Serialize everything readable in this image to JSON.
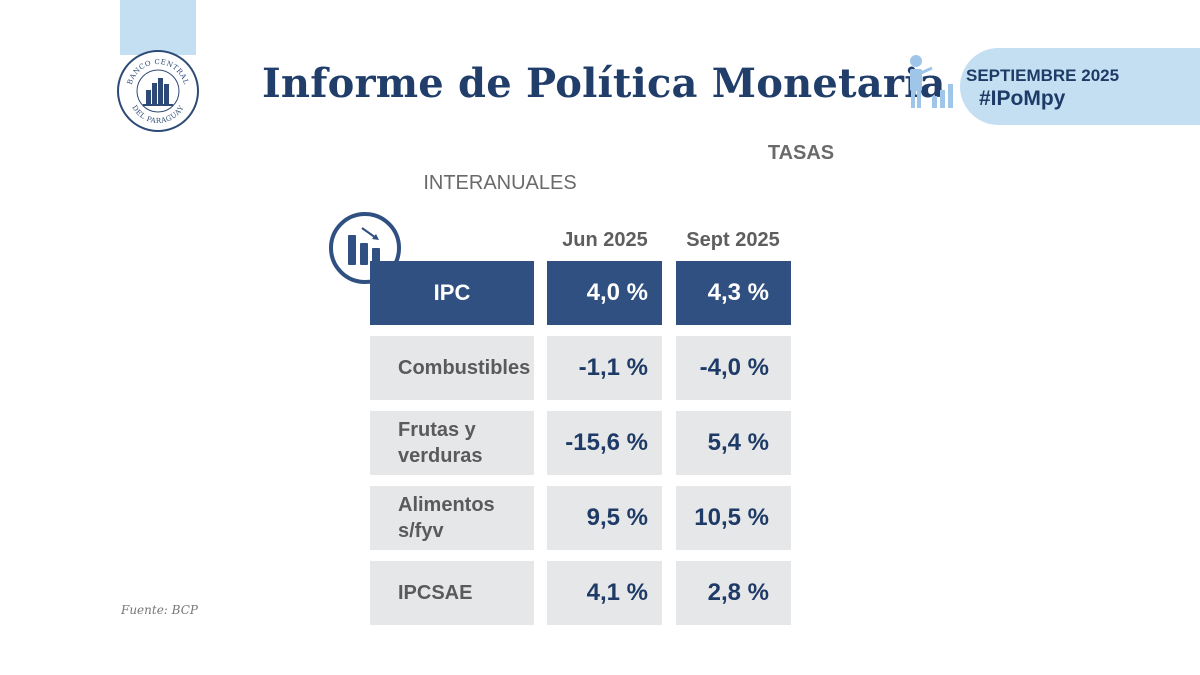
{
  "header": {
    "title": "Informe de Política Monetaria",
    "seal_text_top": "BANCO CENTRAL",
    "seal_text_bottom": "DEL PARAGUAY",
    "month": "SEPTIEMBRE 2025",
    "hashtag": "#IPoMpy"
  },
  "section": {
    "title": "TASAS",
    "subtitle": "INTERANUALES"
  },
  "table": {
    "columns": [
      "Jun 2025",
      "Sept 2025"
    ],
    "rows": [
      {
        "label": "IPC",
        "jun": "4,0 %",
        "sept": "4,3 %",
        "highlight": true
      },
      {
        "label": "Combustibles",
        "jun": "-1,1 %",
        "sept": "-4,0 %",
        "highlight": false
      },
      {
        "label": "Frutas y verduras",
        "jun": "-15,6 %",
        "sept": "5,4 %",
        "highlight": false
      },
      {
        "label": "Alimentos s/fyv",
        "jun": "9,5 %",
        "sept": "10,5 %",
        "highlight": false
      },
      {
        "label": "IPCSAE",
        "jun": "4,1 %",
        "sept": "2,8 %",
        "highlight": false
      }
    ]
  },
  "footer": {
    "source": "Fuente: BCP"
  },
  "colors": {
    "navy": "#2f5080",
    "title_blue": "#213e6b",
    "light_blue": "#c5dff2",
    "cell_grey": "#e6e7e9"
  },
  "icons": {
    "seal": "bank-seal-icon",
    "report": "presenter-chart-icon",
    "table": "bar-chart-arrow-icon"
  }
}
